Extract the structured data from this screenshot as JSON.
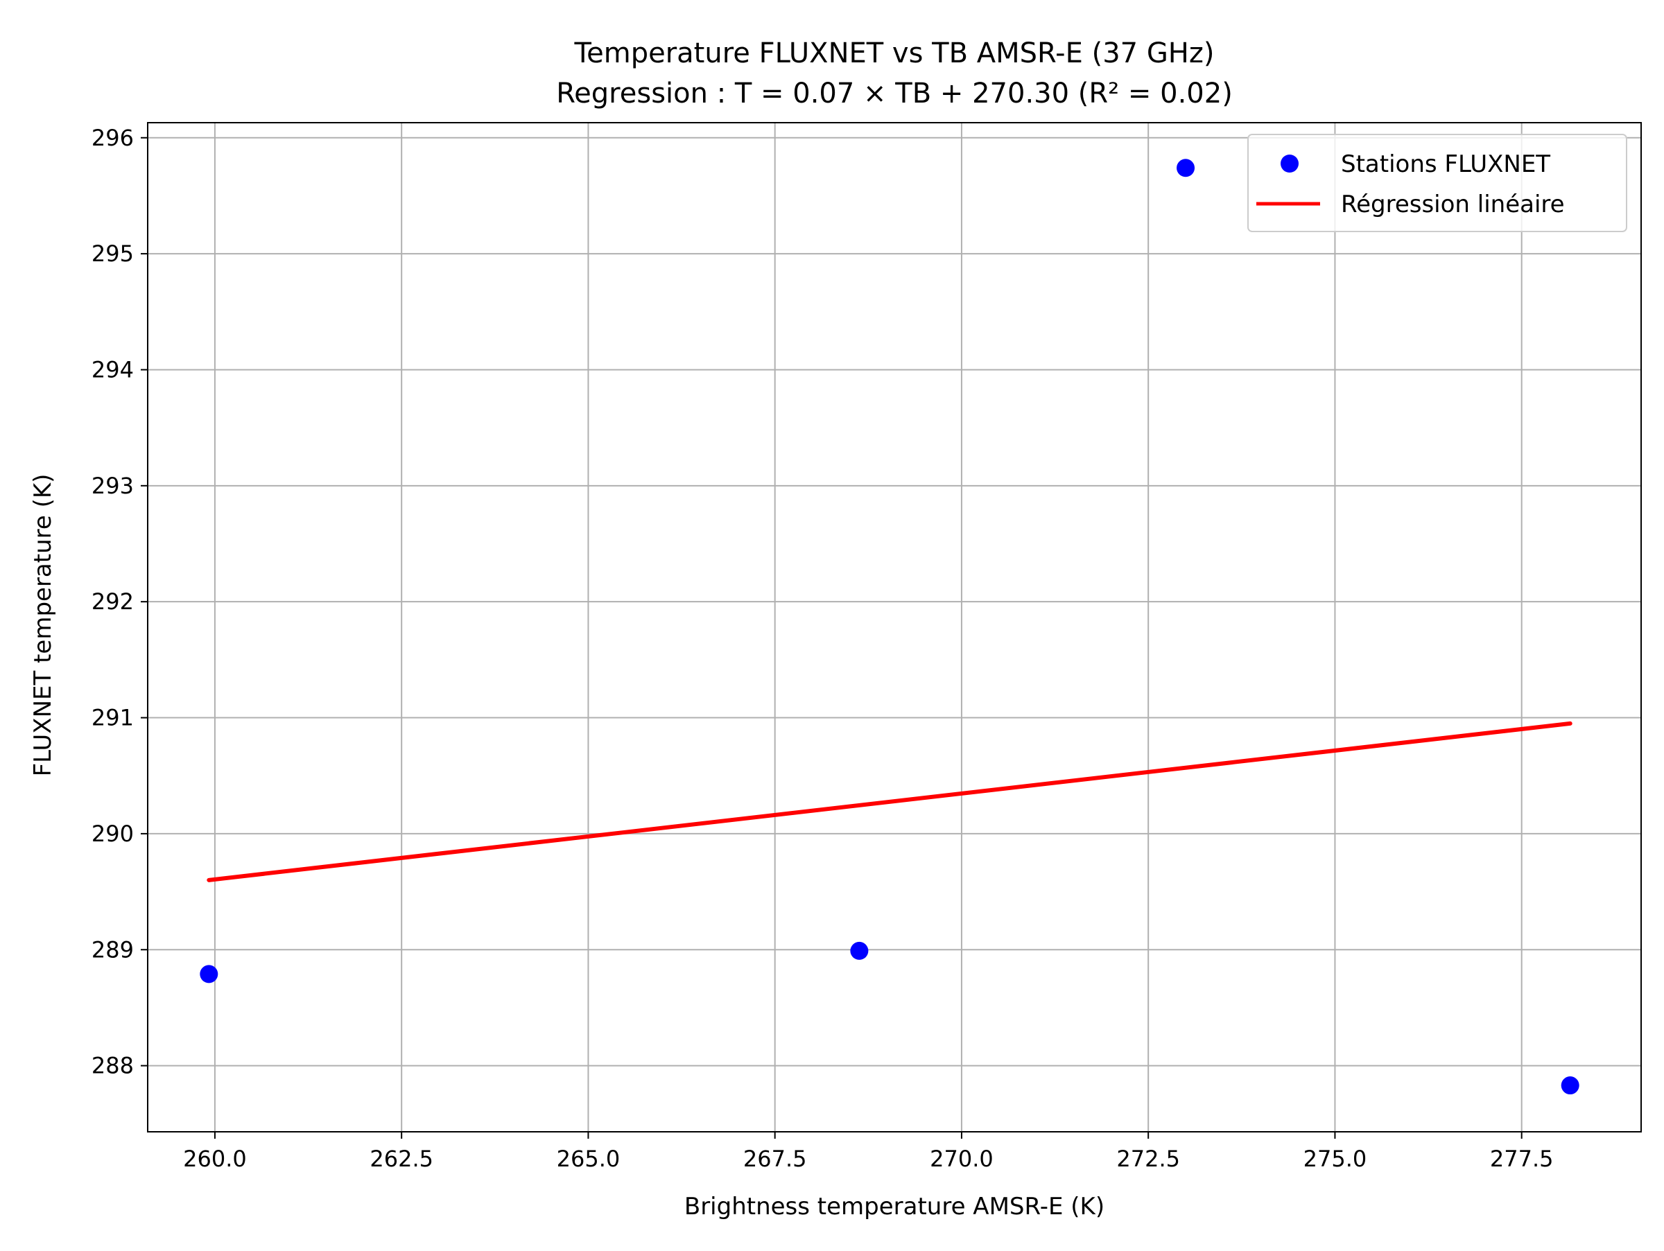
{
  "chart_data": {
    "type": "scatter",
    "title": "Temperature FLUXNET vs TB AMSR-E (37 GHz)",
    "subtitle": "Regression : T = 0.07 × TB + 270.30 (R² = 0.02)",
    "xlabel": "Brightness temperature AMSR-E (K)",
    "ylabel": "FLUXNET temperature (K)",
    "xlim": [
      259.1,
      279.1
    ],
    "ylim": [
      287.43,
      296.13
    ],
    "x_ticks": [
      260.0,
      262.5,
      265.0,
      267.5,
      270.0,
      272.5,
      275.0,
      277.5
    ],
    "x_tick_labels": [
      "260.0",
      "262.5",
      "265.0",
      "267.5",
      "270.0",
      "272.5",
      "275.0",
      "277.5"
    ],
    "y_ticks": [
      288,
      289,
      290,
      291,
      292,
      293,
      294,
      295,
      296
    ],
    "y_tick_labels": [
      "288",
      "289",
      "290",
      "291",
      "292",
      "293",
      "294",
      "295",
      "296"
    ],
    "grid": true,
    "legend_position": "top-right",
    "series": [
      {
        "name": "Stations FLUXNET",
        "kind": "scatter",
        "color": "#0000ff",
        "points": [
          {
            "x": 259.92,
            "y": 288.79
          },
          {
            "x": 268.63,
            "y": 288.99
          },
          {
            "x": 273.0,
            "y": 295.74
          },
          {
            "x": 278.15,
            "y": 287.83
          }
        ]
      },
      {
        "name": "Régression linéaire",
        "kind": "line",
        "color": "#ff0000",
        "points": [
          {
            "x": 259.92,
            "y": 289.6
          },
          {
            "x": 278.15,
            "y": 290.95
          }
        ]
      }
    ]
  }
}
